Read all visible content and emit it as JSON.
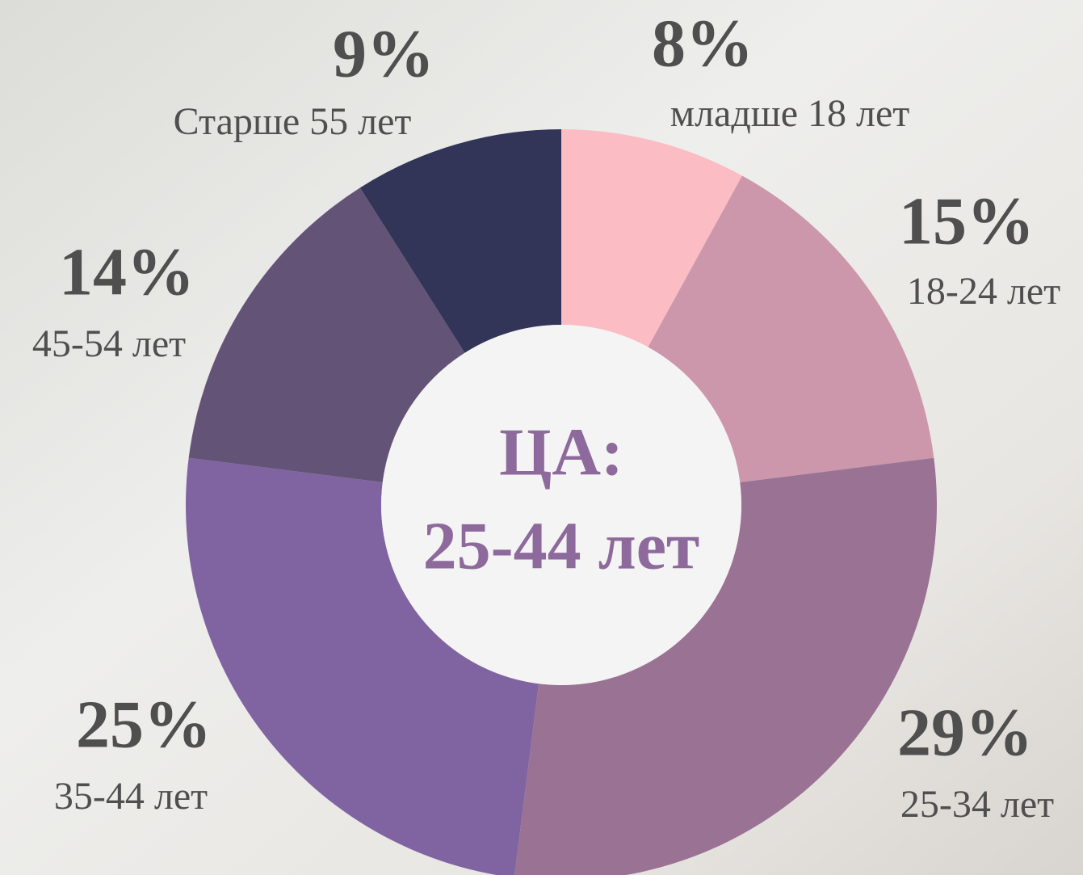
{
  "chart_data": {
    "type": "donut",
    "categories": [
      "младше 18 лет",
      "18-24 лет",
      "25-34 лет",
      "35-44 лет",
      "45-54 лет",
      "Старше 55 лет"
    ],
    "values": [
      8,
      15,
      29,
      25,
      14,
      9
    ],
    "value_labels": [
      "8%",
      "15%",
      "29%",
      "25%",
      "14%",
      "9%"
    ],
    "colors": [
      "#fcbcc3",
      "#cc97ab",
      "#9a7394",
      "#8064a2",
      "#635477",
      "#323558"
    ],
    "center_text": [
      "ЦА:",
      "25-44 лет"
    ]
  }
}
